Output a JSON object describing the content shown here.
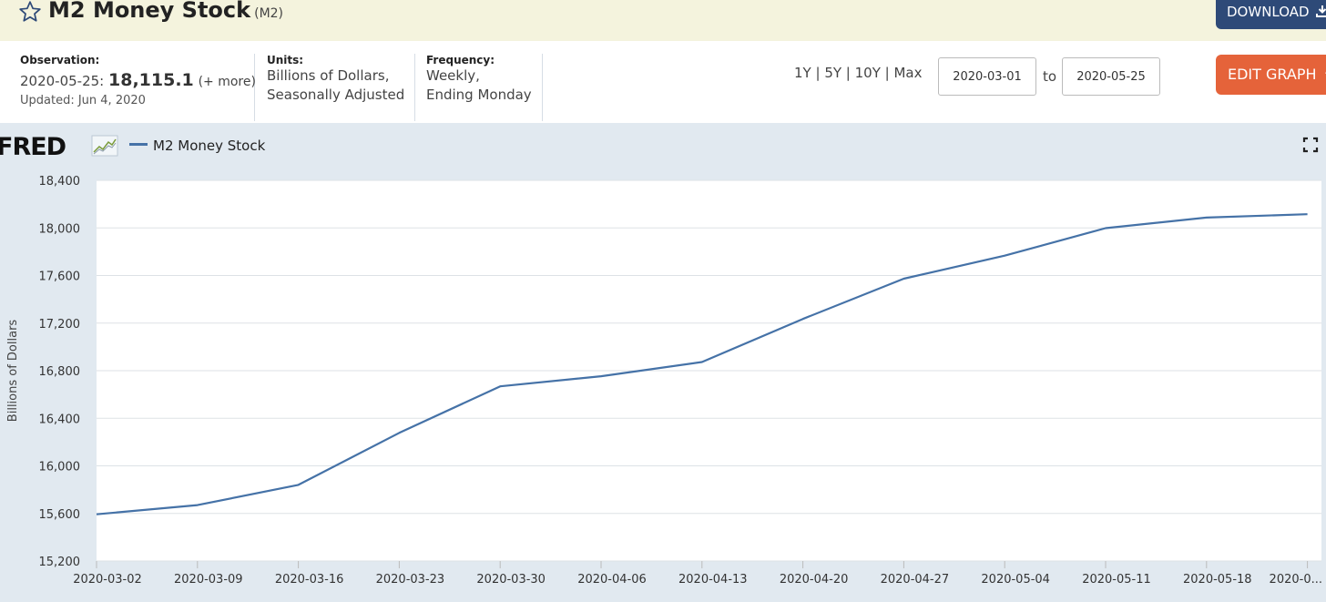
{
  "header": {
    "title": "M2 Money Stock",
    "series_id": "(M2)",
    "download_label": "DOWNLOAD"
  },
  "meta": {
    "observation_label": "Observation:",
    "observation_date": "2020-05-25:",
    "observation_value": "18,115.1",
    "observation_more": "(+ more)",
    "updated": "Updated: Jun 4, 2020",
    "units_label": "Units:",
    "units_line1": "Billions of Dollars,",
    "units_line2": "Seasonally Adjusted",
    "frequency_label": "Frequency:",
    "frequency_line1": "Weekly,",
    "frequency_line2": "Ending Monday"
  },
  "controls": {
    "range_1y": "1Y",
    "range_5y": "5Y",
    "range_10y": "10Y",
    "range_max": "Max",
    "start_date": "2020-03-01",
    "to_label": "to",
    "end_date": "2020-05-25",
    "edit_label": "EDIT GRAPH"
  },
  "panel": {
    "logo": "FRED",
    "legend_label": "M2 Money Stock"
  },
  "colors": {
    "series": "#4572a7",
    "download_button": "#2e4a78",
    "edit_button": "#e5633a",
    "title_bar": "#f4f3dd",
    "panel_bg": "#e1e9f0"
  },
  "chart_data": {
    "type": "line",
    "x": [
      "2020-03-02",
      "2020-03-09",
      "2020-03-16",
      "2020-03-23",
      "2020-03-30",
      "2020-04-06",
      "2020-04-13",
      "2020-04-20",
      "2020-04-27",
      "2020-05-04",
      "2020-05-11",
      "2020-05-18",
      "2020-05-25"
    ],
    "x_tick_labels": [
      "2020-03-02",
      "2020-03-09",
      "2020-03-16",
      "2020-03-23",
      "2020-03-30",
      "2020-04-06",
      "2020-04-13",
      "2020-04-20",
      "2020-04-27",
      "2020-05-04",
      "2020-05-11",
      "2020-05-18",
      "2020-0..."
    ],
    "series": [
      {
        "name": "M2 Money Stock",
        "values": [
          15593,
          15670,
          15840,
          16277,
          16668,
          16753,
          16873,
          17235,
          17573,
          17767,
          17998,
          18087,
          18115.1
        ]
      }
    ],
    "ylabel": "Billions of Dollars",
    "ylim": [
      15200,
      18400
    ],
    "yticks": [
      15200,
      15600,
      16000,
      16400,
      16800,
      17200,
      17600,
      18000,
      18400
    ],
    "ytick_labels": [
      "15,200",
      "15,600",
      "16,000",
      "16,400",
      "16,800",
      "17,200",
      "17,600",
      "18,000",
      "18,400"
    ],
    "grid": true,
    "legend": "top-left"
  }
}
